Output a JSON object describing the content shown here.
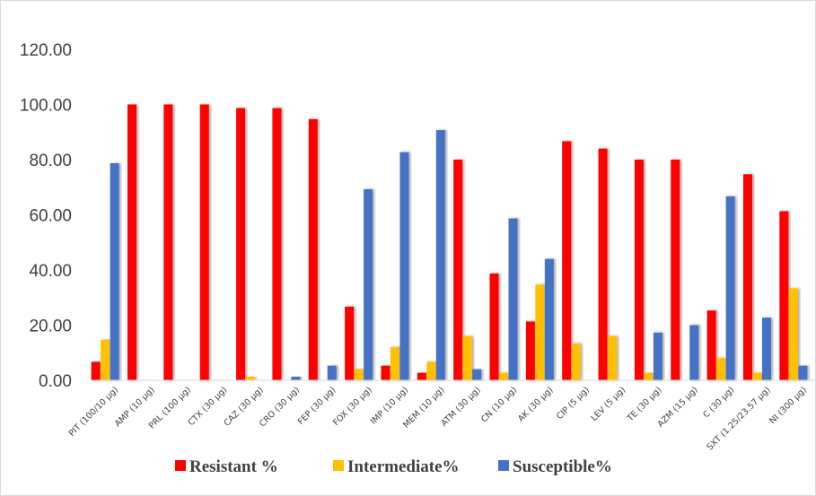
{
  "chart_data": {
    "type": "bar",
    "categories": [
      "PIT (100/10 µg)",
      "AMP (10 µg)",
      "PRL (100 µg)",
      "CTX (30 µg)",
      "CAZ (30 µg)",
      "CRO (30 µg)",
      "FEP (30 µg)",
      "FOX (30 µg)",
      "IMP (10 µg)",
      "MEM (10 µg)",
      "ATM (30 µg)",
      "CN (10 µg)",
      "AK (30 µg)",
      "CIP (5 µg)",
      "LEV (5 µg)",
      "TE (30 µg)",
      "AZM (15 µg)",
      "C (30 µg)",
      "SXT (1.25/23.57 µg)",
      "NI (300 µg)"
    ],
    "series": [
      {
        "name": "Resistant %",
        "color": "#ff0000",
        "values": [
          6.7,
          100,
          100,
          100,
          98.7,
          98.7,
          94.7,
          26.7,
          5.3,
          2.7,
          80,
          38.7,
          21.3,
          86.7,
          84,
          80,
          80,
          25.3,
          74.7,
          61.3
        ]
      },
      {
        "name": "Intermediate%",
        "color": "#ffc000",
        "values": [
          14.7,
          0,
          0,
          0,
          1.3,
          0,
          0,
          4,
          12,
          6.7,
          16,
          2.7,
          34.7,
          13.3,
          16,
          2.7,
          0,
          8,
          2.7,
          33.3
        ]
      },
      {
        "name": "Susceptible%",
        "color": "#4472c4",
        "values": [
          78.7,
          0,
          0,
          0,
          0,
          1.3,
          5.3,
          69.3,
          82.7,
          90.7,
          4,
          58.7,
          44,
          0,
          0,
          17.3,
          20,
          66.7,
          22.7,
          5.3
        ]
      }
    ],
    "yticks": [
      "0.00",
      "20.00",
      "40.00",
      "60.00",
      "80.00",
      "100.00",
      "120.00"
    ],
    "ylim": [
      0,
      120
    ],
    "grid": false,
    "legend_position": "bottom",
    "title": "",
    "xlabel": "",
    "ylabel": ""
  }
}
